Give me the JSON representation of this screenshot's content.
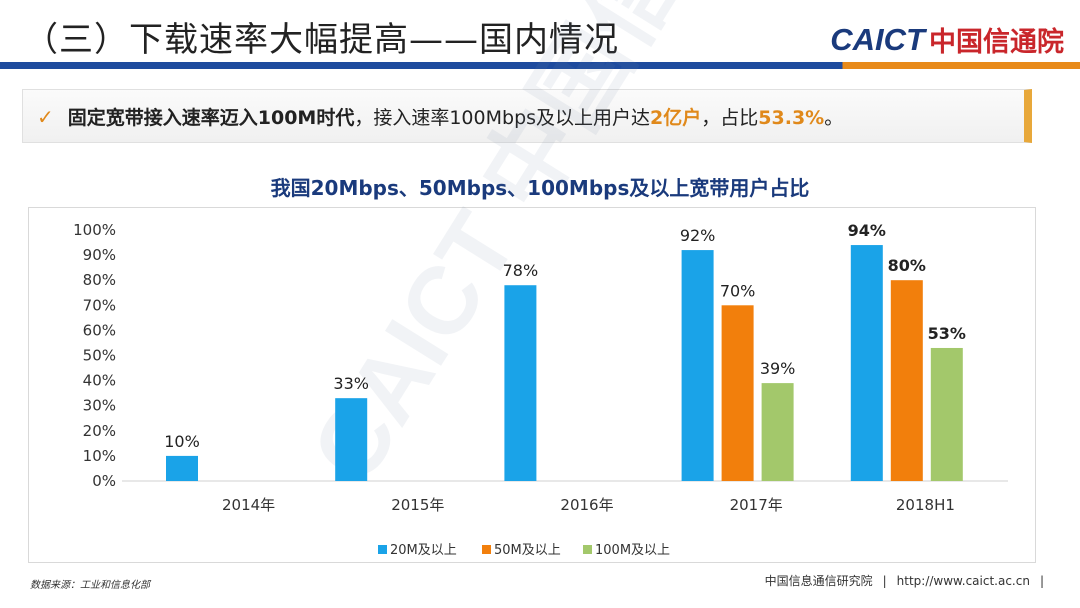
{
  "header": {
    "title": "（三）下载速率大幅提高——国内情况",
    "logo_mark": "CAICT",
    "logo_cn": "中国信通院"
  },
  "callout": {
    "check": "✓",
    "part1": "固定宽带接入速率迈入100M时代",
    "part2": "，接入速率100Mbps及以上用户达",
    "highlight1": "2亿户",
    "part3": "，占比",
    "highlight2": "53.3%",
    "part4": "。"
  },
  "chart_data": {
    "type": "bar",
    "title": "我国20Mbps、50Mbps、100Mbps及以上宽带用户占比",
    "categories": [
      "2014年",
      "2015年",
      "2016年",
      "2017年",
      "2018H1"
    ],
    "series": [
      {
        "name": "20M及以上",
        "color": "#1aa3e8",
        "values": [
          10,
          33,
          78,
          92,
          94
        ],
        "labels": [
          "10%",
          "33%",
          "78%",
          "92%",
          "94%"
        ]
      },
      {
        "name": "50M及以上",
        "color": "#f27f0c",
        "values": [
          null,
          null,
          null,
          70,
          80
        ],
        "labels": [
          "",
          "",
          "",
          "70%",
          "80%"
        ]
      },
      {
        "name": "100M及以上",
        "color": "#a3c86b",
        "values": [
          null,
          null,
          null,
          39,
          53
        ],
        "labels": [
          "",
          "",
          "",
          "39%",
          "53%"
        ]
      }
    ],
    "ylim": [
      0,
      100
    ],
    "yticks": [
      "0%",
      "10%",
      "20%",
      "30%",
      "40%",
      "50%",
      "60%",
      "70%",
      "80%",
      "90%",
      "100%"
    ],
    "legend_position": "bottom",
    "grid": false
  },
  "watermark": "CAICT 中国信通院",
  "footer": {
    "source": "数据来源：工业和信息化部",
    "org": "中国信息通信研究院",
    "sep": "|",
    "url": "http://www.caict.ac.cn",
    "sep2": "|"
  }
}
